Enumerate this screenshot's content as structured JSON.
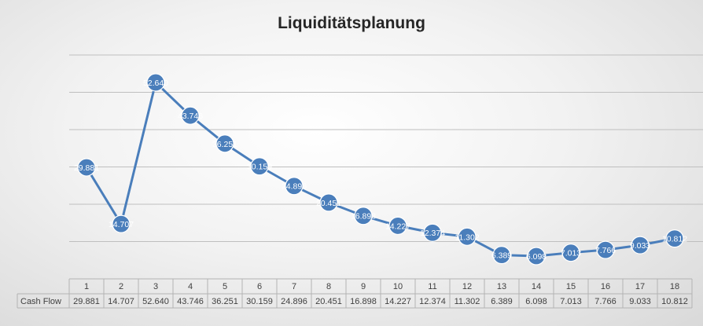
{
  "chart_data": {
    "type": "line",
    "title": "Liquiditätsplanung",
    "categories": [
      "1",
      "2",
      "3",
      "4",
      "5",
      "6",
      "7",
      "8",
      "9",
      "10",
      "11",
      "12",
      "13",
      "14",
      "15",
      "16",
      "17",
      "18"
    ],
    "series": [
      {
        "name": "Cash Flow",
        "values": [
          29.881,
          14.707,
          52.64,
          43.746,
          36.251,
          30.159,
          24.896,
          20.451,
          16.898,
          14.227,
          12.374,
          11.302,
          6.389,
          6.098,
          7.013,
          7.766,
          9.033,
          10.812
        ],
        "value_labels": [
          "29.881",
          "14.707",
          "52.640",
          "43.746",
          "36.251",
          "30.159",
          "24.896",
          "20.451",
          "16.898",
          "14.227",
          "12.374",
          "11.302",
          "6.389",
          "6.098",
          "7.013",
          "7.766",
          "9.033",
          "10.812"
        ]
      }
    ],
    "ylim": [
      0,
      60
    ],
    "grid": true,
    "legend": "none",
    "data_table": true,
    "line_color": "#4a7ebb"
  }
}
